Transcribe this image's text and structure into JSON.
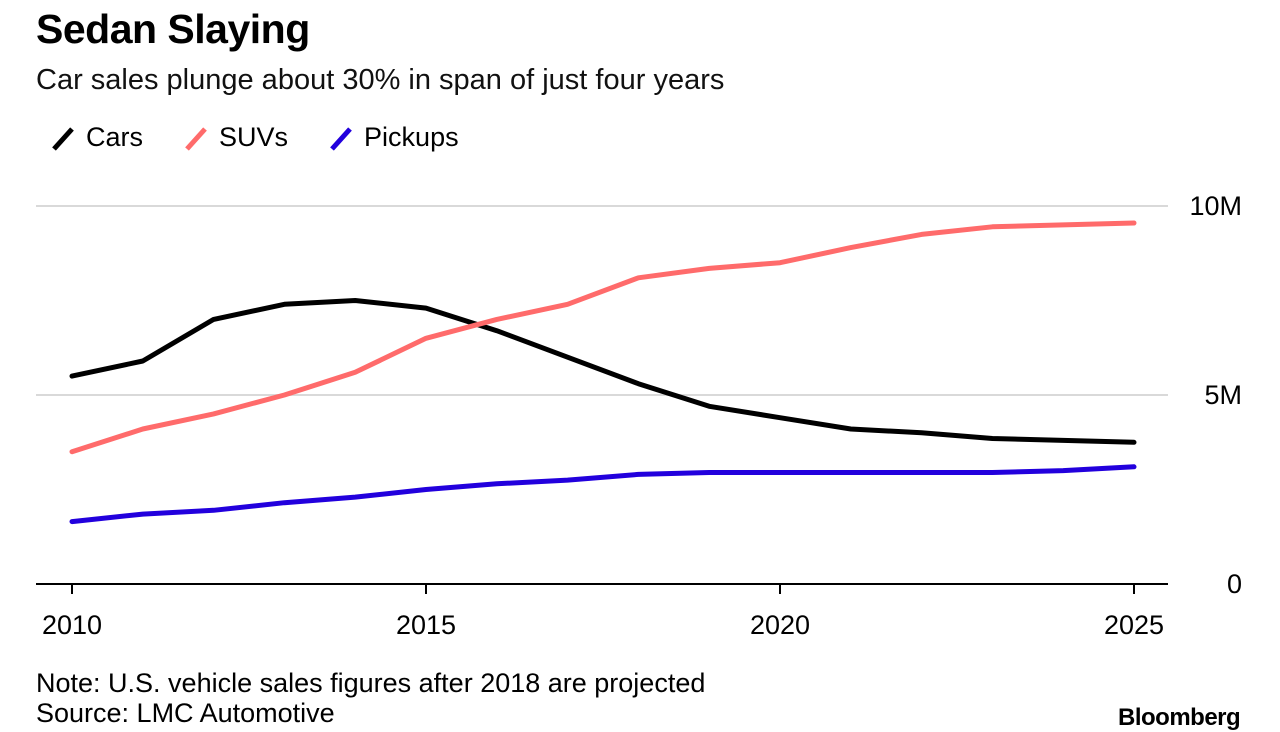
{
  "header": {
    "title": "Sedan Slaying",
    "subtitle": "Car sales plunge about 30% in span of just four years"
  },
  "colors": {
    "cars": "#000000",
    "suvs": "#ff6b6b",
    "pickups": "#2200dd",
    "grid": "#d9d9d9",
    "axis": "#000000"
  },
  "footer": {
    "note": "Note: U.S. vehicle sales figures after 2018 are projected",
    "source": "Source: LMC Automotive",
    "brand": "Bloomberg"
  },
  "chart_data": {
    "type": "line",
    "title": "Sedan Slaying",
    "subtitle": "Car sales plunge about 30% in span of just four years",
    "xlabel": "",
    "ylabel": "",
    "x": [
      2010,
      2011,
      2012,
      2013,
      2014,
      2015,
      2016,
      2017,
      2018,
      2019,
      2020,
      2021,
      2022,
      2023,
      2024,
      2025
    ],
    "xlim": [
      2009.5,
      2025.5
    ],
    "ylim": [
      0,
      10
    ],
    "x_ticks": [
      {
        "value": 2010,
        "label": "2010"
      },
      {
        "value": 2015,
        "label": "2015"
      },
      {
        "value": 2020,
        "label": "2020"
      },
      {
        "value": 2025,
        "label": "2025"
      }
    ],
    "y_ticks": [
      {
        "value": 0,
        "label": "0"
      },
      {
        "value": 5,
        "label": "5M"
      },
      {
        "value": 10,
        "label": "10M"
      }
    ],
    "y_axis_side": "right",
    "grid": true,
    "legend_position": "top-left",
    "series": [
      {
        "key": "cars",
        "name": "Cars",
        "color": "#000000",
        "values": [
          5.5,
          5.9,
          7.0,
          7.4,
          7.5,
          7.3,
          6.7,
          6.0,
          5.3,
          4.7,
          4.4,
          4.1,
          4.0,
          3.85,
          3.8,
          3.75
        ]
      },
      {
        "key": "suvs",
        "name": "SUVs",
        "color": "#ff6b6b",
        "values": [
          3.5,
          4.1,
          4.5,
          5.0,
          5.6,
          6.5,
          7.0,
          7.4,
          8.1,
          8.35,
          8.5,
          8.9,
          9.25,
          9.45,
          9.5,
          9.55
        ]
      },
      {
        "key": "pickups",
        "name": "Pickups",
        "color": "#2200dd",
        "values": [
          1.65,
          1.85,
          1.95,
          2.15,
          2.3,
          2.5,
          2.65,
          2.75,
          2.9,
          2.95,
          2.95,
          2.95,
          2.95,
          2.95,
          3.0,
          3.1
        ]
      }
    ]
  }
}
